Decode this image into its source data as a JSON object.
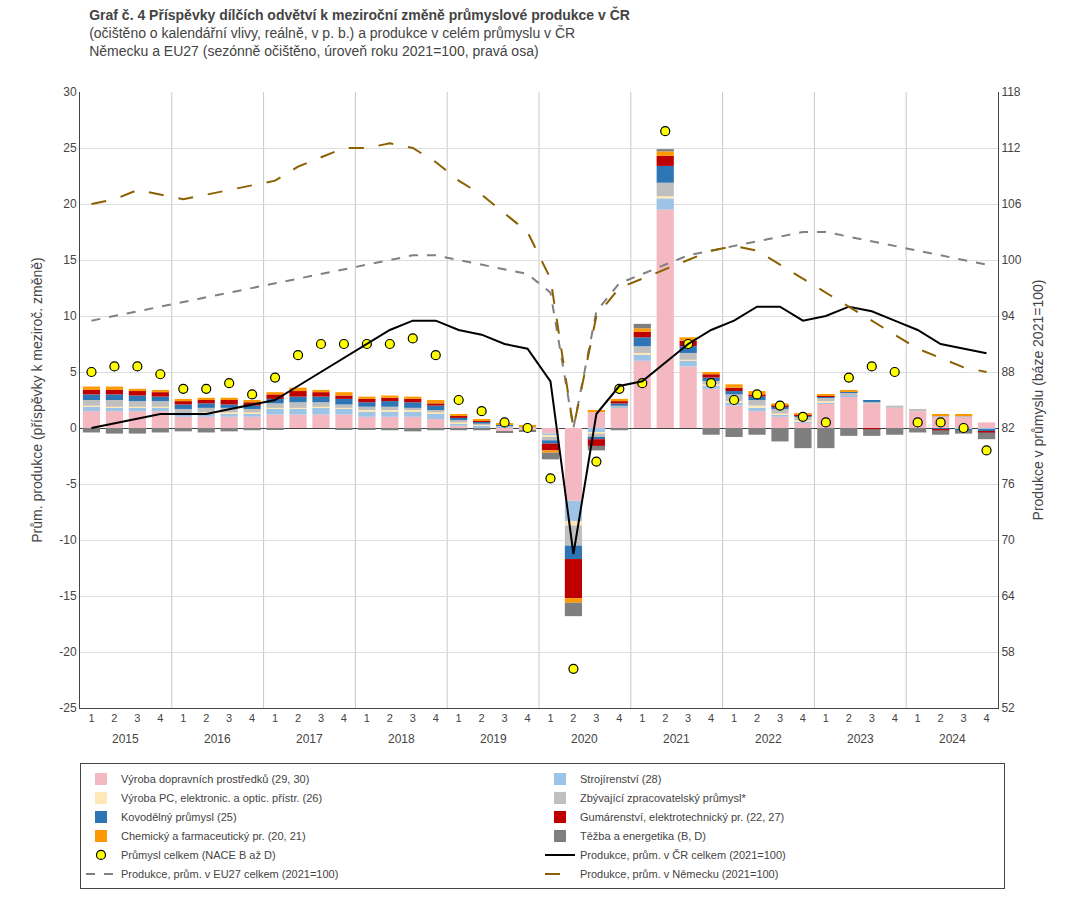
{
  "chart_data": {
    "type": "bar",
    "title": "Graf č. 4 Příspěvky dílčích odvětví k meziroční změně průmyslové produkce v ČR",
    "subtitle": [
      "(očištěno o kalendářní vlivy, reálně, v p. b.) a produkce v celém průmyslu v ČR",
      "Německu a EU27 (sezónně očištěno, úroveň roku 2021=100, pravá osa)"
    ],
    "categories": [
      "1",
      "2",
      "3",
      "4",
      "1",
      "2",
      "3",
      "4",
      "1",
      "2",
      "3",
      "4",
      "1",
      "2",
      "3",
      "4",
      "1",
      "2",
      "3",
      "4",
      "1",
      "2",
      "3",
      "4",
      "1",
      "2",
      "3",
      "4",
      "1",
      "2",
      "3",
      "4",
      "1",
      "2",
      "3",
      "4",
      "1",
      "2",
      "3",
      "4"
    ],
    "annotations": [
      {
        "text": "2015",
        "x": 1.5
      },
      {
        "text": "2016",
        "x": 5.5
      },
      {
        "text": "2017",
        "x": 9.5
      },
      {
        "text": "2018",
        "x": 13.5
      },
      {
        "text": "2019",
        "x": 17.5
      },
      {
        "text": "2020",
        "x": 21.5
      },
      {
        "text": "2021",
        "x": 25.5
      },
      {
        "text": "2022",
        "x": 29.5
      },
      {
        "text": "2023",
        "x": 33.5
      },
      {
        "text": "2024",
        "x": 37.5
      }
    ],
    "ylabel": "Prům. produkce (příspěvky k meziroč. změně)",
    "y2label": "Produkce v průmyslu (báze 2021=100)",
    "ylim": [
      -25,
      30
    ],
    "yticks": [
      -25,
      -20,
      -15,
      -10,
      -5,
      0,
      5,
      10,
      15,
      20,
      25,
      30
    ],
    "y2lim": [
      52,
      118
    ],
    "y2ticks": [
      52,
      58,
      64,
      70,
      76,
      82,
      88,
      94,
      100,
      106,
      112,
      118
    ],
    "grid": true,
    "stacked": true,
    "legend": "bottom",
    "series": [
      {
        "name": "Výroba dopravních prostředků (29, 30)",
        "type": "bar",
        "color": "#F4B8C1",
        "values": [
          1.5,
          1.5,
          1.5,
          1.5,
          1.0,
          1.0,
          1.0,
          1.0,
          1.2,
          1.2,
          1.2,
          1.2,
          1.0,
          1.0,
          1.0,
          0.8,
          0.2,
          0.0,
          -0.3,
          -0.2,
          -0.5,
          -6.5,
          1.5,
          1.8,
          6.0,
          19.5,
          5.5,
          3.5,
          2.0,
          1.5,
          1.0,
          0.5,
          2.2,
          2.8,
          2.2,
          1.8,
          1.5,
          1.0,
          1.0,
          0.5
        ]
      },
      {
        "name": "Strojírenství (28)",
        "type": "bar",
        "color": "#9DC3E6",
        "values": [
          0.4,
          0.3,
          0.3,
          0.3,
          0.2,
          0.3,
          0.3,
          0.3,
          0.5,
          0.5,
          0.6,
          0.5,
          0.5,
          0.5,
          0.5,
          0.5,
          0.2,
          0.2,
          0.1,
          0.0,
          -0.2,
          -1.8,
          -0.4,
          0.1,
          0.6,
          1.0,
          0.5,
          0.3,
          0.3,
          0.3,
          0.2,
          0.1,
          0.1,
          0.1,
          0.0,
          0.0,
          0.0,
          0.0,
          -0.1,
          -0.1
        ]
      },
      {
        "name": "Výroba PC, elektronic. a optic. přístr. (26)",
        "type": "bar",
        "color": "#FFE8B8",
        "values": [
          0.1,
          0.1,
          0.1,
          0.1,
          0.1,
          0.1,
          0.1,
          0.1,
          0.1,
          0.1,
          0.1,
          0.1,
          0.1,
          0.1,
          0.1,
          0.1,
          0.1,
          0.1,
          0.0,
          0.0,
          -0.1,
          -0.4,
          -0.1,
          0.0,
          0.1,
          0.2,
          0.1,
          0.1,
          0.1,
          0.2,
          0.1,
          0.1,
          0.1,
          0.0,
          0.0,
          0.0,
          0.0,
          0.0,
          0.0,
          0.0
        ]
      },
      {
        "name": "Zbývající zpracovatelský průmysl*",
        "type": "bar",
        "color": "#BFBFBF",
        "values": [
          0.5,
          0.6,
          0.5,
          0.5,
          0.4,
          0.4,
          0.4,
          0.3,
          0.4,
          0.5,
          0.4,
          0.3,
          0.3,
          0.3,
          0.2,
          0.2,
          0.2,
          0.1,
          0.1,
          0.1,
          -0.3,
          -1.8,
          -0.3,
          0.1,
          0.6,
          1.2,
          0.6,
          0.3,
          0.6,
          0.5,
          0.4,
          0.3,
          0.3,
          0.3,
          0.2,
          0.2,
          0.2,
          0.1,
          0.1,
          0.0
        ]
      },
      {
        "name": "Kovodělný průmysl (25)",
        "type": "bar",
        "color": "#2E75B6",
        "values": [
          0.5,
          0.5,
          0.5,
          0.4,
          0.4,
          0.4,
          0.3,
          0.3,
          0.4,
          0.5,
          0.5,
          0.5,
          0.4,
          0.5,
          0.5,
          0.4,
          0.2,
          0.2,
          0.1,
          0.0,
          -0.3,
          -1.2,
          -0.2,
          0.2,
          0.8,
          1.5,
          0.6,
          0.3,
          0.3,
          0.3,
          0.2,
          0.1,
          0.1,
          0.1,
          0.1,
          0.0,
          0.0,
          -0.1,
          -0.1,
          -0.2
        ]
      },
      {
        "name": "Gumárenství, elektrotechnický pr. (22, 27)",
        "type": "bar",
        "color": "#BE0000",
        "values": [
          0.4,
          0.4,
          0.4,
          0.4,
          0.3,
          0.3,
          0.4,
          0.3,
          0.4,
          0.5,
          0.4,
          0.3,
          0.3,
          0.3,
          0.3,
          0.2,
          0.2,
          0.1,
          0.0,
          0.0,
          -0.6,
          -3.5,
          -0.6,
          0.2,
          0.5,
          0.9,
          0.5,
          0.3,
          0.3,
          0.2,
          0.1,
          0.1,
          0.1,
          0.0,
          -0.1,
          0.0,
          0.0,
          -0.1,
          0.0,
          -0.1
        ]
      },
      {
        "name": "Chemický a farmaceutický pr. (20, 21)",
        "type": "bar",
        "color": "#FF9900",
        "values": [
          0.3,
          0.3,
          0.2,
          0.2,
          0.2,
          0.2,
          0.2,
          0.2,
          0.2,
          0.3,
          0.2,
          0.3,
          0.2,
          0.2,
          0.2,
          0.3,
          0.1,
          0.1,
          0.1,
          0.1,
          -0.2,
          -0.4,
          0.1,
          0.2,
          0.3,
          0.4,
          0.3,
          0.2,
          0.3,
          0.3,
          0.2,
          0.1,
          0.1,
          0.1,
          0.0,
          0.0,
          0.0,
          0.1,
          0.1,
          0.0
        ]
      },
      {
        "name": "Těžba a energetika (B, D)",
        "type": "bar",
        "color": "#7F7F7F",
        "values": [
          -0.4,
          -0.5,
          -0.5,
          -0.4,
          -0.3,
          -0.4,
          -0.3,
          -0.2,
          -0.1,
          0.0,
          0.0,
          -0.1,
          -0.1,
          -0.2,
          -0.3,
          -0.2,
          -0.2,
          -0.2,
          -0.1,
          -0.1,
          -0.6,
          -1.2,
          -0.4,
          -0.2,
          0.4,
          0.2,
          0.0,
          -0.6,
          -0.8,
          -0.6,
          -1.2,
          -1.8,
          -1.8,
          -0.7,
          -0.6,
          -0.6,
          -0.4,
          -0.4,
          -0.3,
          -0.6
        ]
      },
      {
        "name": "Průmysl celkem (NACE B až D)",
        "type": "scatter",
        "color": "#FFFF00",
        "marker": "circle",
        "values": [
          5.0,
          5.5,
          5.5,
          4.8,
          3.5,
          3.5,
          4.0,
          3.0,
          4.5,
          6.5,
          7.5,
          7.5,
          7.5,
          7.5,
          8.0,
          6.5,
          2.5,
          1.5,
          0.5,
          0.0,
          -4.5,
          -21.5,
          -3.0,
          3.5,
          4.0,
          26.5,
          7.5,
          4.0,
          2.5,
          3.0,
          2.0,
          1.0,
          0.5,
          4.5,
          5.5,
          5.0,
          0.5,
          0.5,
          0.0,
          -2.0
        ]
      },
      {
        "name": "Produkce, prům. v ČR celkem (2021=100)",
        "type": "line",
        "axis": "y2",
        "color": "#000000",
        "line_style": "solid",
        "values": [
          82.0,
          82.5,
          83.0,
          83.5,
          83.5,
          83.5,
          84.0,
          84.5,
          85.0,
          86.5,
          88.0,
          89.5,
          91.0,
          92.5,
          93.5,
          93.5,
          92.5,
          92.0,
          91.0,
          90.5,
          87.0,
          68.5,
          83.5,
          86.5,
          87.0,
          89.0,
          91.0,
          92.5,
          93.5,
          95.0,
          95.0,
          93.5,
          94.0,
          95.0,
          94.5,
          93.5,
          92.5,
          91.0,
          90.5,
          90.0
        ]
      },
      {
        "name": "Produkce, prům. v EU27 celkem (2021=100)",
        "type": "line",
        "axis": "y2",
        "color": "#808080",
        "line_style": "dash",
        "values": [
          93.5,
          94.0,
          94.5,
          95.0,
          95.5,
          96.0,
          96.5,
          97.0,
          97.5,
          98.0,
          98.5,
          99.0,
          99.5,
          100.0,
          100.5,
          100.5,
          100.0,
          99.5,
          99.0,
          98.5,
          96.5,
          82.0,
          94.5,
          97.5,
          98.5,
          99.5,
          100.5,
          101.0,
          101.5,
          102.0,
          102.5,
          103.0,
          103.0,
          102.5,
          102.0,
          101.5,
          101.0,
          100.5,
          100.0,
          99.5
        ]
      },
      {
        "name": "Produkce, prům. v Německu (2021=100)",
        "type": "line",
        "axis": "y2",
        "color": "#8B6000",
        "line_style": "longdash",
        "values": [
          106.0,
          106.5,
          107.5,
          107.0,
          106.5,
          107.0,
          107.5,
          108.0,
          108.5,
          110.0,
          111.0,
          112.0,
          112.0,
          112.5,
          112.0,
          110.5,
          108.5,
          107.0,
          105.0,
          103.0,
          98.0,
          82.0,
          94.0,
          97.0,
          98.0,
          99.0,
          100.0,
          101.0,
          101.5,
          101.0,
          99.5,
          98.0,
          96.5,
          95.0,
          93.5,
          92.0,
          90.5,
          89.5,
          88.5,
          88.0
        ]
      }
    ]
  }
}
